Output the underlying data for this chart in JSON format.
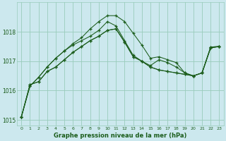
{
  "title": "Graphe pression niveau de la mer (hPa)",
  "background_color": "#cce8ee",
  "grid_color": "#99ccbb",
  "line_color": "#1a5c1a",
  "xlim": [
    -0.5,
    23.5
  ],
  "ylim": [
    1014.8,
    1019.0
  ],
  "yticks": [
    1015,
    1016,
    1017,
    1018
  ],
  "xticks": [
    0,
    1,
    2,
    3,
    4,
    5,
    6,
    7,
    8,
    9,
    10,
    11,
    12,
    13,
    14,
    15,
    16,
    17,
    18,
    19,
    20,
    21,
    22,
    23
  ],
  "series": [
    [
      1015.1,
      1016.2,
      1016.3,
      1016.65,
      1016.8,
      1017.05,
      1017.3,
      1017.5,
      1017.7,
      1017.85,
      1018.05,
      1018.1,
      1017.65,
      1017.15,
      1017.0,
      1016.8,
      1016.7,
      1016.65,
      1016.6,
      1016.55,
      1016.5,
      1016.6,
      1017.45,
      1017.5
    ],
    [
      1015.1,
      1016.2,
      1016.3,
      1016.65,
      1016.8,
      1017.05,
      1017.3,
      1017.5,
      1017.7,
      1017.85,
      1018.05,
      1018.1,
      1017.65,
      1017.15,
      1017.0,
      1016.8,
      1016.7,
      1016.65,
      1016.6,
      1016.55,
      1016.5,
      1016.6,
      1017.45,
      1017.5
    ],
    [
      1015.1,
      1016.15,
      1016.45,
      1016.8,
      1017.1,
      1017.35,
      1017.6,
      1017.8,
      1018.1,
      1018.35,
      1018.55,
      1018.55,
      1018.35,
      1017.95,
      1017.55,
      1017.1,
      1017.15,
      1017.05,
      1016.95,
      1016.6,
      1016.5,
      1016.6,
      1017.48,
      1017.5
    ],
    [
      1015.1,
      1016.15,
      1016.45,
      1016.8,
      1017.1,
      1017.35,
      1017.55,
      1017.7,
      1017.85,
      1018.05,
      1018.35,
      1018.2,
      1017.7,
      1017.2,
      1017.0,
      1016.85,
      1017.05,
      1016.95,
      1016.8,
      1016.6,
      1016.5,
      1016.6,
      1017.48,
      1017.5
    ]
  ]
}
